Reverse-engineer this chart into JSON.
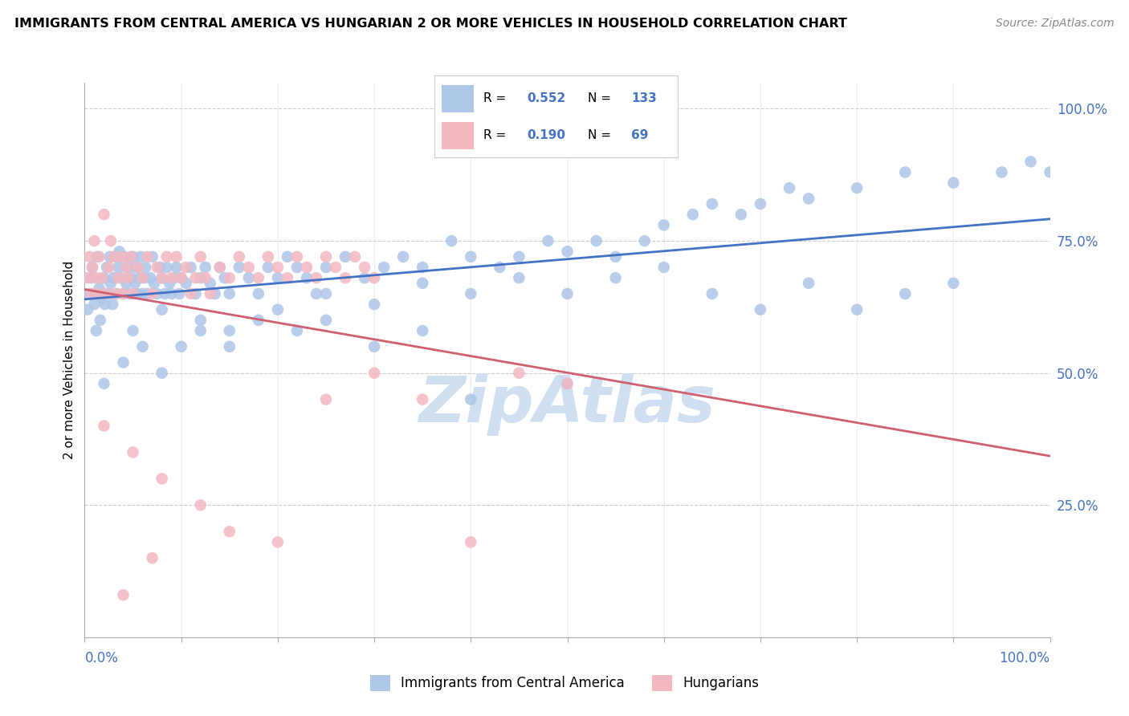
{
  "title": "IMMIGRANTS FROM CENTRAL AMERICA VS HUNGARIAN 2 OR MORE VEHICLES IN HOUSEHOLD CORRELATION CHART",
  "source": "Source: ZipAtlas.com",
  "ylabel": "2 or more Vehicles in Household",
  "legend1_label": "Immigrants from Central America",
  "legend2_label": "Hungarians",
  "r1": "0.552",
  "n1": "133",
  "r2": "0.190",
  "n2": "69",
  "blue_color": "#aec6e8",
  "blue_line_color": "#4472c4",
  "pink_color": "#f4b8c1",
  "pink_line_color": "#d06070",
  "xlim": [
    0,
    100
  ],
  "ylim": [
    0,
    105
  ],
  "watermark": "ZipAtlas",
  "watermark_color": "#d0dff0",
  "blue_x": [
    0.3,
    0.5,
    0.7,
    0.8,
    1.0,
    1.2,
    1.3,
    1.5,
    1.6,
    1.8,
    2.0,
    2.1,
    2.3,
    2.5,
    2.6,
    2.7,
    2.9,
    3.0,
    3.2,
    3.3,
    3.5,
    3.6,
    3.8,
    4.0,
    4.1,
    4.3,
    4.5,
    4.6,
    4.8,
    5.0,
    5.2,
    5.3,
    5.5,
    5.7,
    5.8,
    6.0,
    6.2,
    6.3,
    6.5,
    6.8,
    7.0,
    7.2,
    7.5,
    7.8,
    8.0,
    8.3,
    8.5,
    8.8,
    9.0,
    9.3,
    9.5,
    9.8,
    10.0,
    10.5,
    11.0,
    11.5,
    12.0,
    12.5,
    13.0,
    13.5,
    14.0,
    14.5,
    15.0,
    16.0,
    17.0,
    18.0,
    19.0,
    20.0,
    21.0,
    22.0,
    23.0,
    24.0,
    25.0,
    27.0,
    29.0,
    31.0,
    33.0,
    35.0,
    38.0,
    40.0,
    43.0,
    45.0,
    48.0,
    50.0,
    53.0,
    55.0,
    58.0,
    60.0,
    63.0,
    65.0,
    68.0,
    70.0,
    73.0,
    75.0,
    80.0,
    85.0,
    90.0,
    95.0,
    98.0,
    100.0,
    5.0,
    8.0,
    12.0,
    15.0,
    20.0,
    25.0,
    30.0,
    35.0,
    40.0,
    45.0,
    50.0,
    55.0,
    60.0,
    65.0,
    70.0,
    75.0,
    80.0,
    85.0,
    90.0,
    2.0,
    4.0,
    6.0,
    8.0,
    10.0,
    12.0,
    15.0,
    18.0,
    22.0,
    25.0,
    30.0,
    35.0,
    40.0,
    50.0
  ],
  "blue_y": [
    62,
    65,
    68,
    70,
    63,
    58,
    72,
    66,
    60,
    64,
    68,
    63,
    70,
    65,
    72,
    67,
    63,
    68,
    72,
    65,
    70,
    73,
    68,
    65,
    72,
    67,
    70,
    65,
    68,
    72,
    67,
    70,
    65,
    68,
    72,
    65,
    68,
    70,
    65,
    68,
    72,
    67,
    65,
    70,
    68,
    65,
    70,
    67,
    65,
    68,
    70,
    65,
    68,
    67,
    70,
    65,
    68,
    70,
    67,
    65,
    70,
    68,
    65,
    70,
    68,
    65,
    70,
    68,
    72,
    70,
    68,
    65,
    70,
    72,
    68,
    70,
    72,
    70,
    75,
    72,
    70,
    72,
    75,
    73,
    75,
    72,
    75,
    78,
    80,
    82,
    80,
    82,
    85,
    83,
    85,
    88,
    86,
    88,
    90,
    88,
    58,
    62,
    60,
    58,
    62,
    65,
    63,
    67,
    65,
    68,
    65,
    68,
    70,
    65,
    62,
    67,
    62,
    65,
    67,
    48,
    52,
    55,
    50,
    55,
    58,
    55,
    60,
    58,
    60,
    55,
    58,
    45,
    48
  ],
  "pink_x": [
    0.3,
    0.5,
    0.7,
    0.8,
    1.0,
    1.2,
    1.3,
    1.5,
    1.8,
    2.0,
    2.2,
    2.5,
    2.7,
    3.0,
    3.2,
    3.5,
    3.8,
    4.0,
    4.3,
    4.5,
    4.8,
    5.0,
    5.5,
    6.0,
    6.5,
    7.0,
    7.5,
    8.0,
    8.5,
    9.0,
    9.5,
    10.0,
    10.5,
    11.0,
    11.5,
    12.0,
    12.5,
    13.0,
    14.0,
    15.0,
    16.0,
    17.0,
    18.0,
    19.0,
    20.0,
    21.0,
    22.0,
    23.0,
    24.0,
    25.0,
    26.0,
    27.0,
    28.0,
    29.0,
    30.0,
    5.0,
    8.0,
    12.0,
    15.0,
    20.0,
    25.0,
    30.0,
    35.0,
    40.0,
    45.0,
    50.0,
    2.0,
    4.0,
    7.0
  ],
  "pink_y": [
    68,
    72,
    65,
    70,
    75,
    68,
    65,
    72,
    68,
    80,
    65,
    70,
    75,
    72,
    65,
    68,
    72,
    65,
    70,
    68,
    72,
    65,
    70,
    68,
    72,
    65,
    70,
    68,
    72,
    68,
    72,
    68,
    70,
    65,
    68,
    72,
    68,
    65,
    70,
    68,
    72,
    70,
    68,
    72,
    70,
    68,
    72,
    70,
    68,
    72,
    70,
    68,
    72,
    70,
    68,
    35,
    30,
    25,
    20,
    18,
    45,
    50,
    45,
    18,
    50,
    48,
    40,
    8,
    15
  ]
}
